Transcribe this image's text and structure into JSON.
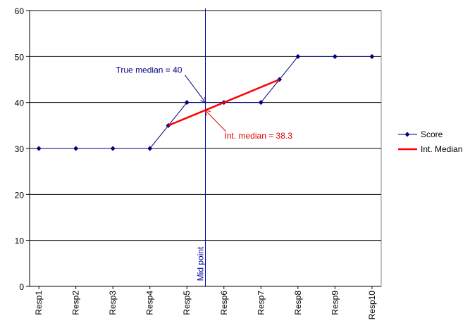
{
  "chart_data": {
    "type": "line",
    "x": [
      1,
      2,
      3,
      4,
      4.5,
      5,
      6,
      7,
      7.5,
      8,
      9,
      10
    ],
    "series": [
      {
        "name": "Score",
        "color": "#000080",
        "x": [
          1,
          2,
          3,
          4,
          4.5,
          5,
          6,
          7,
          7.5,
          8,
          9,
          10
        ],
        "values": [
          30,
          30,
          30,
          30,
          35,
          40,
          40,
          40,
          45,
          50,
          50,
          50
        ],
        "marker": "diamond"
      },
      {
        "name": "Int. Median",
        "color": "#ff0000",
        "x": [
          4.5,
          7.5
        ],
        "values": [
          35,
          45
        ]
      }
    ],
    "xlim": [
      0.75,
      10.25
    ],
    "xticks": [
      {
        "value": 1,
        "label": "Resp1"
      },
      {
        "value": 2,
        "label": "Resp2"
      },
      {
        "value": 3,
        "label": "Resp3"
      },
      {
        "value": 4,
        "label": "Resp4"
      },
      {
        "value": 5,
        "label": "Resp5"
      },
      {
        "value": 6,
        "label": "Resp6"
      },
      {
        "value": 7,
        "label": "Resp7"
      },
      {
        "value": 8,
        "label": "Resp8"
      },
      {
        "value": 9,
        "label": "Resp9"
      },
      {
        "value": 10,
        "label": "Resp10"
      }
    ],
    "ylim": [
      0,
      60
    ],
    "yticks": [
      0,
      10,
      20,
      30,
      40,
      50,
      60
    ],
    "grid": true,
    "legend": "right",
    "midpoint": {
      "label": "Mid point",
      "x": 5.5,
      "color": "#0000a0"
    },
    "annotations": [
      {
        "text": "True median = 40",
        "x": 5.5,
        "y": 40,
        "color": "#000080"
      },
      {
        "text": "Int. median = 38.3",
        "x": 5.5,
        "y": 38.3,
        "color": "#e00000"
      }
    ]
  }
}
